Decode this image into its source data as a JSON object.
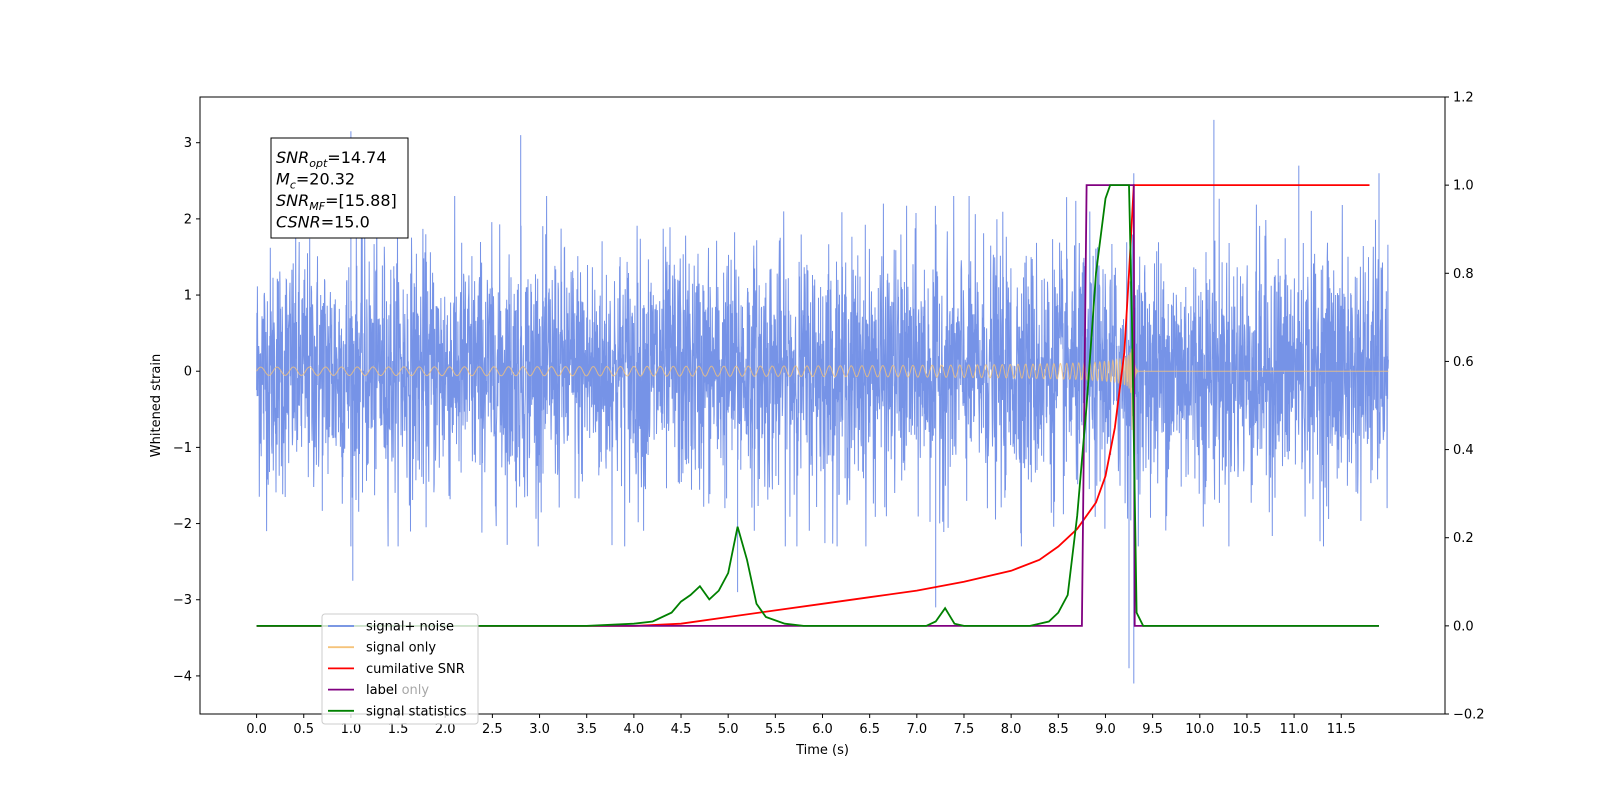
{
  "chart_data": {
    "type": "line",
    "xlabel": "Time (s)",
    "ylabel": "Whitened strain",
    "xlim": [
      -0.6,
      12.6
    ],
    "ylim": [
      -4.5,
      3.6
    ],
    "y2lim": [
      -0.2,
      1.2
    ],
    "x_ticks": [
      0.0,
      0.5,
      1.0,
      1.5,
      2.0,
      2.5,
      3.0,
      3.5,
      4.0,
      4.5,
      5.0,
      5.5,
      6.0,
      6.5,
      7.0,
      7.5,
      8.0,
      8.5,
      9.0,
      9.5,
      10.0,
      10.5,
      11.0,
      11.5
    ],
    "x_tick_labels": [
      "0.0",
      "0.5",
      "1.0",
      "1.5",
      "2.0",
      "2.5",
      "3.0",
      "3.5",
      "4.0",
      "4.5",
      "5.0",
      "5.5",
      "6.0",
      "6.5",
      "7.0",
      "7.5",
      "8.0",
      "8.5",
      "9.0",
      "9.5",
      "10.0",
      "10.5",
      "11.0",
      "11.5"
    ],
    "y_ticks": [
      -4,
      -3,
      -2,
      -1,
      0,
      1,
      2,
      3
    ],
    "y_tick_labels": [
      "−4",
      "−3",
      "−2",
      "−1",
      "0",
      "1",
      "2",
      "3"
    ],
    "y2_ticks": [
      -0.2,
      0.0,
      0.2,
      0.4,
      0.6,
      0.8,
      1.0,
      1.2
    ],
    "y2_tick_labels": [
      "−0.2",
      "0.0",
      "0.2",
      "0.4",
      "0.6",
      "0.8",
      "1.0",
      "1.2"
    ],
    "grid": false,
    "legend_position": "lower-left",
    "annotation": [
      {
        "base": "SNR",
        "sub": "opt",
        "value": "=14.74"
      },
      {
        "base": "M",
        "sub": "c",
        "value": "=20.32"
      },
      {
        "base": "SNR",
        "sub": "MF",
        "value": "=[15.88]"
      },
      {
        "base": "CSNR",
        "sub": "",
        "value": "=15.0"
      }
    ],
    "series": [
      {
        "name": "signal+ noise",
        "axis": "left",
        "color": "#6f8de6",
        "style": "noise",
        "x_range": [
          0.0,
          12.0
        ],
        "envelope": 2.3,
        "peaks": [
          [
            1.0,
            3.15
          ],
          [
            1.02,
            -2.75
          ],
          [
            2.8,
            3.1
          ],
          [
            5.1,
            -2.9
          ],
          [
            7.2,
            -3.1
          ],
          [
            9.25,
            -3.9
          ],
          [
            9.3,
            -4.1
          ],
          [
            9.3,
            2.6
          ],
          [
            10.15,
            3.3
          ],
          [
            11.05,
            2.7
          ],
          [
            11.9,
            2.6
          ]
        ]
      },
      {
        "name": "signal only",
        "axis": "left",
        "color": "#f5c37a",
        "style": "chirp",
        "x_range": [
          0.0,
          12.0
        ],
        "merger_time": 9.28,
        "peak_amplitude": 1.0
      },
      {
        "name": "cumilative SNR",
        "axis": "right",
        "color": "#ff0000",
        "x": [
          0.0,
          3.0,
          4.0,
          4.5,
          5.0,
          5.5,
          6.0,
          6.5,
          7.0,
          7.5,
          8.0,
          8.3,
          8.5,
          8.7,
          8.9,
          9.0,
          9.1,
          9.2,
          9.25,
          9.3,
          11.8
        ],
        "values": [
          0.0,
          0.0,
          0.0,
          0.005,
          0.02,
          0.035,
          0.05,
          0.065,
          0.08,
          0.1,
          0.125,
          0.15,
          0.18,
          0.22,
          0.28,
          0.34,
          0.45,
          0.62,
          0.8,
          1.0,
          1.0
        ]
      },
      {
        "name": "label",
        "axis": "right",
        "color": "#800080",
        "x": [
          0.0,
          8.75,
          8.8,
          9.3,
          9.31,
          11.9
        ],
        "values": [
          0.0,
          0.0,
          1.0,
          1.0,
          0.0,
          0.0
        ]
      },
      {
        "name": "signal statistics",
        "axis": "right",
        "color": "#008000",
        "x": [
          0.0,
          3.5,
          4.0,
          4.2,
          4.4,
          4.5,
          4.6,
          4.7,
          4.8,
          4.9,
          5.0,
          5.1,
          5.2,
          5.3,
          5.4,
          5.6,
          5.8,
          6.5,
          7.1,
          7.2,
          7.3,
          7.4,
          7.5,
          8.2,
          8.4,
          8.5,
          8.6,
          8.7,
          8.8,
          8.9,
          9.0,
          9.05,
          9.1,
          9.15,
          9.2,
          9.25,
          9.28,
          9.33,
          9.4,
          11.9
        ],
        "values": [
          0.0,
          0.0,
          0.005,
          0.01,
          0.03,
          0.055,
          0.07,
          0.09,
          0.06,
          0.08,
          0.12,
          0.225,
          0.15,
          0.05,
          0.02,
          0.005,
          0.0,
          0.0,
          0.0,
          0.01,
          0.04,
          0.005,
          0.0,
          0.0,
          0.01,
          0.03,
          0.07,
          0.25,
          0.5,
          0.8,
          0.97,
          1.0,
          1.0,
          1.0,
          1.0,
          1.0,
          0.7,
          0.03,
          0.0,
          0.0
        ]
      }
    ],
    "legend_extra": "label only"
  }
}
